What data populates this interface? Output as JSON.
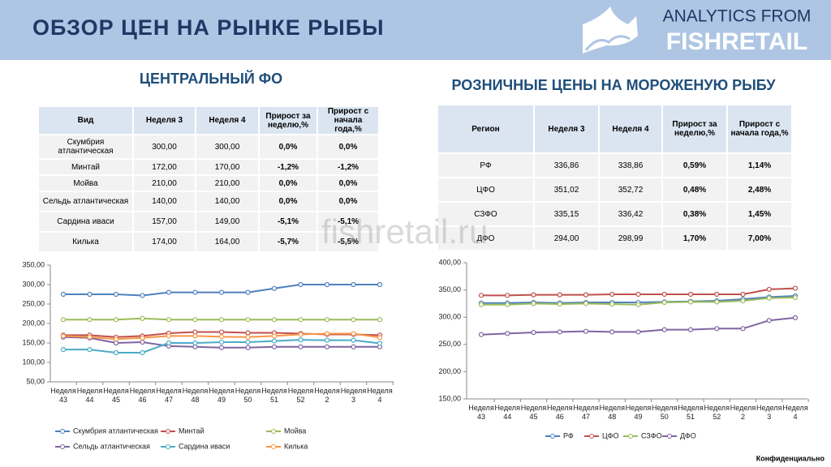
{
  "header": {
    "title": "ОБЗОР ЦЕН НА РЫНКЕ РЫБЫ",
    "logo_top": "ANALYTICS FROM",
    "logo_bottom": "FISHRETAIL"
  },
  "watermark": "fishretail.ru",
  "footer": "Конфиденциально",
  "tables": [
    {
      "title": "ЦЕНТРАЛЬНЫЙ ФО",
      "columns": [
        "Вид",
        "Неделя 3",
        "Неделя 4",
        "Прирост за неделю,%",
        "Прирост с начала года,%"
      ],
      "rows": [
        [
          "Скумбрия атлантическая",
          "300,00",
          "300,00",
          "0,0%",
          "0,0%"
        ],
        [
          "Минтай",
          "172,00",
          "170,00",
          "-1,2%",
          "-1,2%"
        ],
        [
          "Мойва",
          "210,00",
          "210,00",
          "0,0%",
          "0,0%"
        ],
        [
          "Сельдь атлантическая",
          "140,00",
          "140,00",
          "0,0%",
          "0,0%"
        ],
        [
          "Сардина иваси",
          "157,00",
          "149,00",
          "-5,1%",
          "-5,1%"
        ],
        [
          "Килька",
          "174,00",
          "164,00",
          "-5,7%",
          "-5,5%"
        ]
      ]
    },
    {
      "title": "РОЗНИЧНЫЕ ЦЕНЫ НА МОРОЖЕНУЮ РЫБУ",
      "columns": [
        "Регион",
        "Неделя 3",
        "Неделя 4",
        "Прирост за неделю,%",
        "Прирост с начала года,%"
      ],
      "rows": [
        [
          "РФ",
          "336,86",
          "338,86",
          "0,59%",
          "1,14%"
        ],
        [
          "ЦФО",
          "351,02",
          "352,72",
          "0,48%",
          "2,48%"
        ],
        [
          "СЗФО",
          "335,15",
          "336,42",
          "0,38%",
          "1,45%"
        ],
        [
          "ДФО",
          "294,00",
          "298,99",
          "1,70%",
          "7,00%"
        ]
      ]
    }
  ],
  "chart_data": [
    {
      "type": "line",
      "legend": "bottom",
      "categories": [
        "Неделя 43",
        "Неделя 44",
        "Неделя 45",
        "Неделя 46",
        "Неделя 47",
        "Неделя 48",
        "Неделя 49",
        "Неделя 50",
        "Неделя 51",
        "Неделя 52",
        "Неделя 2",
        "Неделя 3",
        "Неделя 4"
      ],
      "ylim": [
        50,
        350
      ],
      "yticks": [
        {
          "value": 50,
          "label": "50,00"
        },
        {
          "value": 100,
          "label": "100,00"
        },
        {
          "value": 150,
          "label": "150,00"
        },
        {
          "value": 200,
          "label": "200,00"
        },
        {
          "value": 250,
          "label": "250,00"
        },
        {
          "value": 300,
          "label": "300,00"
        },
        {
          "value": 350,
          "label": "350,00"
        }
      ],
      "series": [
        {
          "name": "Скумбрия атлантическая",
          "color": "#4f81bd",
          "values": [
            275,
            275,
            275,
            272,
            280,
            280,
            280,
            280,
            290,
            300,
            300,
            300,
            300
          ]
        },
        {
          "name": "Минтай",
          "color": "#c0504d",
          "values": [
            170,
            170,
            165,
            168,
            175,
            178,
            178,
            176,
            176,
            174,
            172,
            172,
            170
          ]
        },
        {
          "name": "Мойва",
          "color": "#9bbb59",
          "values": [
            210,
            210,
            210,
            213,
            210,
            210,
            210,
            210,
            210,
            210,
            210,
            210,
            210
          ]
        },
        {
          "name": "Сельдь атлантическая",
          "color": "#8064a2",
          "values": [
            165,
            163,
            150,
            152,
            142,
            140,
            138,
            138,
            140,
            140,
            140,
            140,
            140
          ]
        },
        {
          "name": "Сардина иваси",
          "color": "#4bacc6",
          "values": [
            133,
            133,
            125,
            125,
            150,
            150,
            152,
            152,
            155,
            158,
            157,
            157,
            149
          ]
        },
        {
          "name": "Килька",
          "color": "#f79646",
          "values": [
            168,
            165,
            160,
            163,
            168,
            168,
            166,
            165,
            168,
            172,
            174,
            174,
            164
          ]
        }
      ]
    },
    {
      "type": "line",
      "legend": "bottom",
      "categories": [
        "Неделя 43",
        "Неделя 44",
        "Неделя 45",
        "Неделя 46",
        "Неделя 47",
        "Неделя 48",
        "Неделя 49",
        "Неделя 50",
        "Неделя 51",
        "Неделя 52",
        "Неделя 2",
        "Неделя 3",
        "Неделя 4"
      ],
      "ylim": [
        150,
        400
      ],
      "yticks": [
        {
          "value": 150,
          "label": "150,00"
        },
        {
          "value": 200,
          "label": "200,00"
        },
        {
          "value": 250,
          "label": "250,00"
        },
        {
          "value": 300,
          "label": "300,00"
        },
        {
          "value": 350,
          "label": "350,00"
        },
        {
          "value": 400,
          "label": "400,00"
        }
      ],
      "series": [
        {
          "name": "РФ",
          "color": "#4f81bd",
          "values": [
            326,
            326,
            327,
            326,
            327,
            327,
            327,
            328,
            329,
            330,
            333,
            337,
            339
          ]
        },
        {
          "name": "ЦФО",
          "color": "#c0504d",
          "values": [
            340,
            340,
            341,
            341,
            341,
            342,
            342,
            342,
            342,
            342,
            342,
            351,
            353
          ]
        },
        {
          "name": "СЗФО",
          "color": "#9bbb59",
          "values": [
            323,
            323,
            325,
            324,
            325,
            324,
            323,
            327,
            328,
            328,
            330,
            335,
            336
          ]
        },
        {
          "name": "ДФО",
          "color": "#8064a2",
          "values": [
            268,
            270,
            272,
            273,
            274,
            273,
            273,
            277,
            277,
            279,
            279,
            294,
            299
          ]
        }
      ]
    }
  ]
}
